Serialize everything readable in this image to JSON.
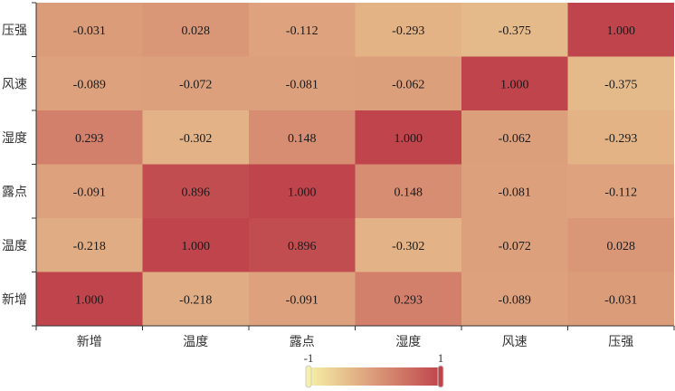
{
  "chart_data": {
    "type": "heatmap",
    "x_categories": [
      "新增",
      "温度",
      "露点",
      "湿度",
      "风速",
      "压强"
    ],
    "y_categories": [
      "新增",
      "温度",
      "露点",
      "湿度",
      "风速",
      "压强"
    ],
    "values": [
      [
        1.0,
        -0.218,
        -0.091,
        0.293,
        -0.089,
        -0.031
      ],
      [
        -0.218,
        1.0,
        0.896,
        -0.302,
        -0.072,
        0.028
      ],
      [
        -0.091,
        0.896,
        1.0,
        0.148,
        -0.081,
        -0.112
      ],
      [
        0.293,
        -0.302,
        0.148,
        1.0,
        -0.062,
        -0.293
      ],
      [
        -0.089,
        -0.072,
        -0.081,
        -0.062,
        1.0,
        -0.375
      ],
      [
        -0.031,
        0.028,
        -0.112,
        -0.293,
        -0.375,
        1.0
      ]
    ],
    "value_format": "%.3f",
    "visual_map": {
      "min": -1,
      "max": 1,
      "min_label": "-1",
      "max_label": "1",
      "orientation": "horizontal",
      "position": "bottom-center"
    },
    "colors": {
      "low": "#f6efa6",
      "high": "#bf444c"
    },
    "xlabel": "",
    "ylabel": "",
    "title": ""
  }
}
